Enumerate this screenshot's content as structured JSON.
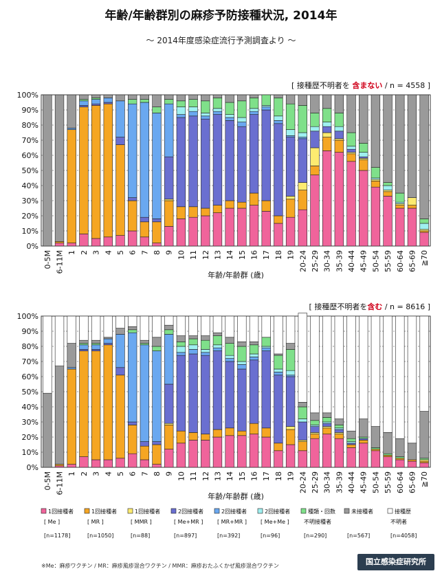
{
  "title": "年齢/年齢群別の麻疹予防接種状況, 2014年",
  "subtitle": "～ 2014年度感染症流行予測調査より ～",
  "footnote": "※Me：麻疹ワクチン / MR：麻疹風疹混合ワクチン / MMR：麻疹おたふくかぜ風疹混合ワクチン",
  "logo": "国立感染症研究所",
  "legend": [
    {
      "l1": "1回接種者",
      "l2": "[ Me ]",
      "n": "[n=1178]",
      "color": "#f0649b"
    },
    {
      "l1": "1回接種者",
      "l2": "[ MR ]",
      "n": "[n=1050]",
      "color": "#f5a623"
    },
    {
      "l1": "1回接種者",
      "l2": "[ MMR ]",
      "n": "[n=88]",
      "color": "#fdeb70"
    },
    {
      "l1": "2回接種者",
      "l2": "[ Me+MR ]",
      "n": "[n=897]",
      "color": "#6a6fd0"
    },
    {
      "l1": "2回接種者",
      "l2": "[ MR+MR ]",
      "n": "[n=392]",
      "color": "#6aa8f0"
    },
    {
      "l1": "2回接種者",
      "l2": "[ Me+Me ]",
      "n": "[n=96]",
      "color": "#9ff0f0"
    },
    {
      "l1": "種類・回数",
      "l2": "不明接種者",
      "n": "[n=290]",
      "color": "#7fe08a"
    },
    {
      "l1": "未接種者",
      "l2": "",
      "n": "[n=567]",
      "color": "#9a9a9a"
    },
    {
      "l1": "接種歴",
      "l2": "不明者",
      "n": "[n=4058]",
      "color": "#ffffff"
    }
  ],
  "chart_data": [
    {
      "type": "bar",
      "stacked": true,
      "note": "[ 接種歴不明者を含まない / n = 4558 ]",
      "note_pre": "[ 接種歴不明者を ",
      "note_hl": "含まない",
      "note_post": " / n = 4558 ]",
      "xlabel": "年齢/年齢群 (歳)",
      "ylim": [
        0,
        100
      ],
      "yticks": [
        "0%",
        "10%",
        "20%",
        "30%",
        "40%",
        "50%",
        "60%",
        "70%",
        "80%",
        "90%",
        "100%"
      ],
      "categories": [
        "0-5M",
        "6-11M",
        "1",
        "2",
        "3",
        "4",
        "5",
        "6",
        "7",
        "8",
        "9",
        "10",
        "11",
        "12",
        "13",
        "14",
        "15",
        "16",
        "17",
        "18",
        "19",
        "20-24",
        "25-29",
        "30-34",
        "35-39",
        "40-44",
        "45-49",
        "50-54",
        "55-59",
        "60-64",
        "65-69",
        "≧70"
      ],
      "series": [
        {
          "name": "1回接種者 [Me]",
          "values": [
            0,
            2,
            2,
            8,
            5,
            6,
            7,
            10,
            6,
            2,
            13,
            18,
            19,
            20,
            22,
            25,
            25,
            27,
            23,
            15,
            19,
            24,
            47,
            63,
            62,
            56,
            50,
            39,
            33,
            25,
            25,
            9
          ]
        },
        {
          "name": "1回接種者 [MR]",
          "values": [
            0,
            1,
            75,
            84,
            88,
            88,
            60,
            20,
            10,
            14,
            17,
            8,
            7,
            5,
            5,
            5,
            4,
            8,
            7,
            5,
            12,
            13,
            6,
            9,
            8,
            5,
            7,
            4,
            3,
            2,
            2,
            1
          ]
        },
        {
          "name": "1回接種者 [MMR]",
          "values": [
            0,
            0,
            0,
            0,
            0,
            0,
            0,
            0,
            0,
            0,
            1,
            0,
            0,
            0,
            0,
            0,
            0,
            0,
            0,
            0,
            2,
            5,
            12,
            3,
            1,
            1,
            1,
            1,
            1,
            1,
            5,
            1
          ]
        },
        {
          "name": "2回接種者 [Me+MR]",
          "values": [
            0,
            0,
            0,
            1,
            1,
            1,
            5,
            2,
            3,
            2,
            28,
            59,
            60,
            59,
            60,
            53,
            50,
            52,
            60,
            61,
            39,
            29,
            11,
            4,
            5,
            2,
            1,
            0,
            0,
            0,
            0,
            0
          ]
        },
        {
          "name": "2回接種者 [MR+MR]",
          "values": [
            0,
            0,
            1,
            3,
            3,
            3,
            24,
            62,
            76,
            70,
            35,
            2,
            3,
            2,
            2,
            2,
            3,
            2,
            2,
            2,
            1,
            1,
            0,
            0,
            0,
            0,
            0,
            0,
            0,
            0,
            0,
            0
          ]
        },
        {
          "name": "2回接種者 [Me+Me]",
          "values": [
            0,
            0,
            0,
            0,
            0,
            0,
            0,
            0,
            0,
            0,
            0,
            5,
            3,
            2,
            2,
            2,
            3,
            2,
            1,
            3,
            4,
            3,
            3,
            3,
            3,
            2,
            3,
            1,
            3,
            1,
            0,
            4
          ]
        },
        {
          "name": "種類・回数不明接種者",
          "values": [
            0,
            0,
            0,
            1,
            1,
            0,
            0,
            3,
            2,
            4,
            3,
            4,
            5,
            8,
            7,
            8,
            11,
            7,
            7,
            12,
            17,
            18,
            9,
            9,
            9,
            9,
            6,
            7,
            2,
            6,
            0,
            3
          ]
        },
        {
          "name": "未接種者",
          "values": [
            100,
            97,
            22,
            3,
            2,
            2,
            4,
            3,
            3,
            8,
            3,
            4,
            3,
            4,
            2,
            5,
            4,
            2,
            0,
            2,
            6,
            7,
            12,
            9,
            12,
            25,
            32,
            48,
            58,
            65,
            68,
            82
          ]
        }
      ]
    },
    {
      "type": "bar",
      "stacked": true,
      "note": "[ 接種歴不明者を含む / n = 8616 ]",
      "note_pre": "[ 接種歴不明者を",
      "note_hl": "含む",
      "note_post": " / n = 8616 ]",
      "xlabel": "年齢/年齢群 (歳)",
      "ylim": [
        0,
        100
      ],
      "yticks": [
        "0%",
        "10%",
        "20%",
        "30%",
        "40%",
        "50%",
        "60%",
        "70%",
        "80%",
        "90%",
        "100%"
      ],
      "categories": [
        "0-5M",
        "6-11M",
        "1",
        "2",
        "3",
        "4",
        "5",
        "6",
        "7",
        "8",
        "9",
        "10",
        "11",
        "12",
        "13",
        "14",
        "15",
        "16",
        "17",
        "18",
        "19",
        "20-24",
        "25-29",
        "30-34",
        "35-39",
        "40-44",
        "45-49",
        "50-54",
        "55-59",
        "60-64",
        "65-69",
        "≧70"
      ],
      "series": [
        {
          "name": "1回接種者 [Me]",
          "values": [
            0,
            1,
            2,
            7,
            5,
            5,
            6,
            9,
            5,
            2,
            12,
            16,
            18,
            18,
            20,
            21,
            21,
            22,
            20,
            11,
            15,
            11,
            19,
            22,
            19,
            13,
            16,
            11,
            7,
            5,
            4,
            3
          ]
        },
        {
          "name": "1回接種者 [MR]",
          "values": [
            0,
            1,
            63,
            70,
            72,
            76,
            55,
            19,
            9,
            13,
            16,
            8,
            5,
            4,
            5,
            5,
            3,
            7,
            6,
            5,
            10,
            6,
            3,
            4,
            3,
            2,
            2,
            1,
            1,
            1,
            1,
            1
          ]
        },
        {
          "name": "1回接種者 [MMR]",
          "values": [
            0,
            0,
            0,
            0,
            0,
            0,
            0,
            0,
            0,
            0,
            1,
            0,
            0,
            0,
            0,
            0,
            0,
            0,
            0,
            0,
            2,
            1,
            1,
            1,
            1,
            0,
            0,
            0,
            0,
            0,
            0,
            1
          ]
        },
        {
          "name": "2回接種者 [Me+MR]",
          "values": [
            0,
            0,
            0,
            1,
            1,
            1,
            5,
            2,
            3,
            2,
            26,
            50,
            52,
            52,
            52,
            44,
            41,
            42,
            51,
            45,
            33,
            12,
            4,
            2,
            2,
            1,
            1,
            0,
            0,
            0,
            0,
            0
          ]
        },
        {
          "name": "2回接種者 [MR+MR]",
          "values": [
            0,
            0,
            1,
            3,
            3,
            3,
            22,
            59,
            64,
            60,
            33,
            2,
            3,
            2,
            2,
            2,
            3,
            2,
            2,
            2,
            1,
            0,
            0,
            0,
            0,
            0,
            0,
            0,
            0,
            0,
            0,
            0
          ]
        },
        {
          "name": "2回接種者 [Me+Me]",
          "values": [
            0,
            0,
            0,
            0,
            0,
            0,
            0,
            0,
            0,
            0,
            0,
            4,
            3,
            2,
            2,
            2,
            2,
            2,
            1,
            2,
            3,
            2,
            1,
            1,
            1,
            1,
            0,
            0,
            0,
            0,
            0,
            0
          ]
        },
        {
          "name": "種類・回数不明接種者",
          "values": [
            0,
            0,
            0,
            1,
            1,
            0,
            0,
            2,
            1,
            3,
            3,
            3,
            4,
            6,
            6,
            8,
            10,
            6,
            6,
            9,
            14,
            8,
            3,
            3,
            2,
            2,
            1,
            1,
            1,
            1,
            0,
            1
          ]
        },
        {
          "name": "未接種者",
          "values": [
            49,
            65,
            16,
            2,
            2,
            1,
            4,
            2,
            2,
            6,
            3,
            4,
            2,
            3,
            2,
            4,
            3,
            2,
            0,
            1,
            4,
            3,
            5,
            3,
            4,
            5,
            12,
            14,
            14,
            12,
            11,
            31
          ]
        },
        {
          "name": "接種歴不明者",
          "values": [
            51,
            33,
            18,
            16,
            16,
            14,
            8,
            7,
            16,
            14,
            6,
            13,
            13,
            13,
            11,
            14,
            17,
            17,
            14,
            25,
            18,
            59,
            64,
            64,
            68,
            76,
            68,
            73,
            77,
            81,
            84,
            63
          ]
        }
      ]
    }
  ]
}
